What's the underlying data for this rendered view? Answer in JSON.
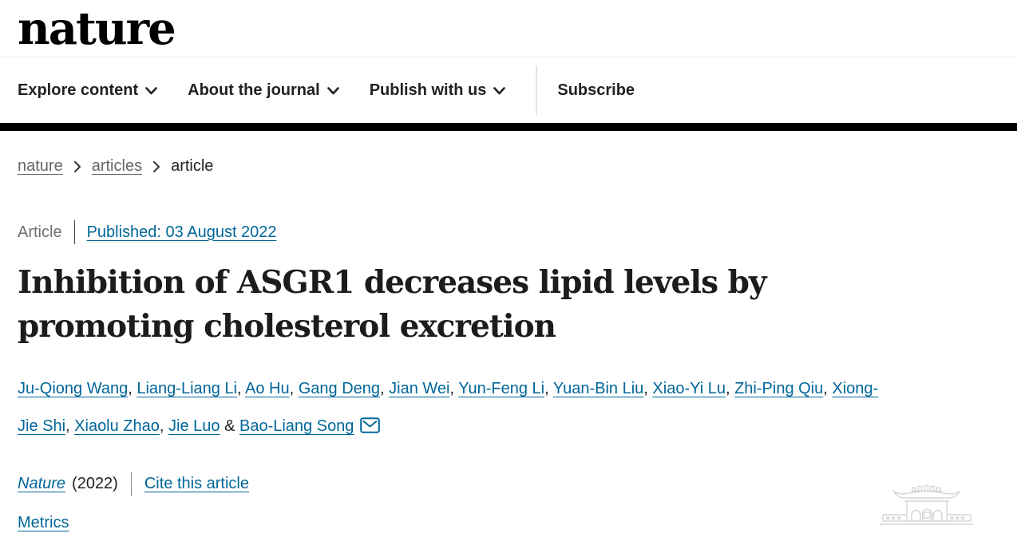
{
  "header": {
    "logo": "nature",
    "nav": [
      {
        "label": "Explore content"
      },
      {
        "label": "About the journal"
      },
      {
        "label": "Publish with us"
      }
    ],
    "subscribe_label": "Subscribe"
  },
  "breadcrumb": {
    "items": [
      {
        "label": "nature",
        "link": true
      },
      {
        "label": "articles",
        "link": true
      },
      {
        "label": "article",
        "link": false
      }
    ]
  },
  "article": {
    "type_label": "Article",
    "published_label": "Published: 03 August 2022",
    "title": "Inhibition of ASGR1 decreases lipid levels by promoting cholesterol excretion",
    "authors": [
      "Ju-Qiong Wang",
      "Liang-Liang Li",
      "Ao Hu",
      "Gang Deng",
      "Jian Wei",
      "Yun-Feng Li",
      "Yuan-Bin Liu",
      "Xiao-Yi Lu",
      "Zhi-Ping Qiu",
      "Xiong-Jie Shi",
      "Xiaolu Zhao",
      "Jie Luo"
    ],
    "corresponding_author": "Bao-Liang Song",
    "journal_name": "Nature",
    "journal_year": "(2022)",
    "cite_label": "Cite this article",
    "metrics_label": "Metrics"
  },
  "icons": {
    "nav_chevron": "chevron-down-icon",
    "breadcrumb_separator": "chevron-right-icon",
    "corresponding_mail": "envelope-icon",
    "watermark": "university-gate-watermark"
  },
  "colors": {
    "link_blue": "#006699",
    "text_dark": "#222222",
    "text_gray": "#666666",
    "bar_black": "#000000",
    "divider_gray": "#e4e4e4",
    "watermark_gray": "#d6d6d6"
  }
}
